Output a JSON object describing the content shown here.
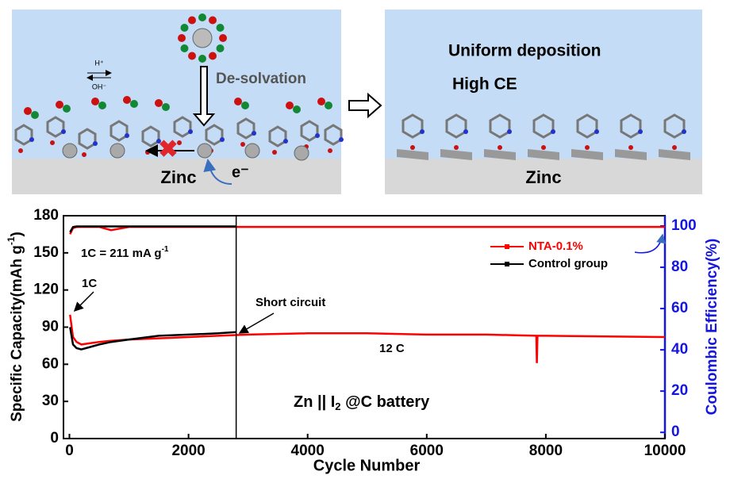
{
  "schematic": {
    "left": {
      "forward": "H⁺",
      "backward": "OH⁻",
      "step": "De-solvation",
      "electrode": "Zinc",
      "electron": "e⁻"
    },
    "right": {
      "line1": "Uniform deposition",
      "line2": "High CE",
      "electrode": "Zinc"
    }
  },
  "chart_data": {
    "type": "line",
    "xlabel": "Cycle Number",
    "ylabel": {
      "text": "Specific Capacity(mAh g",
      "sup": "-1",
      "tail": ")"
    },
    "y2label": "Coulombic Efficiency(%)",
    "xlim": [
      -100,
      10000
    ],
    "xticks": [
      0,
      2000,
      4000,
      6000,
      8000,
      10000
    ],
    "ylim": [
      0,
      180
    ],
    "yticks": [
      0,
      30,
      60,
      90,
      120,
      150,
      180
    ],
    "y2lim": [
      -3,
      105
    ],
    "y2ticks": [
      0,
      20,
      40,
      60,
      80,
      100
    ],
    "legend": "upper right",
    "series": [
      {
        "name": "NTA-0.1%",
        "color": "#ff0000",
        "x": [
          10,
          60,
          120,
          200,
          350,
          500,
          700,
          1000,
          1500,
          2000,
          2500,
          3000,
          4000,
          5000,
          6000,
          7000,
          7840,
          7850,
          7860,
          8000,
          9000,
          10000
        ],
        "values": [
          100,
          82,
          78,
          76,
          77,
          78,
          79,
          80,
          81,
          82,
          83,
          84,
          85,
          85,
          84,
          84,
          83,
          61,
          83,
          83,
          82.5,
          82
        ],
        "efficiency": [
          96,
          99,
          99.5,
          99.6,
          99.6,
          99.6,
          98,
          99.6,
          99.6,
          99.6,
          99.6,
          99.6,
          99.6,
          99.6,
          99.6,
          99.6,
          99.6,
          99.6,
          99.6,
          99.6,
          99.6,
          99.6
        ]
      },
      {
        "name": "Control group",
        "color": "#000000",
        "x": [
          10,
          60,
          120,
          200,
          350,
          500,
          700,
          1000,
          1500,
          2000,
          2500,
          2800
        ],
        "values": [
          90,
          76,
          73,
          72,
          74,
          76,
          78,
          80,
          83,
          84,
          85,
          86
        ],
        "efficiency": [
          97,
          99.5,
          99.8,
          99.8,
          99.8,
          99.8,
          99.8,
          99.8,
          99.8,
          99.8,
          99.8,
          99.8
        ]
      }
    ],
    "annotations": {
      "rate_note": {
        "text": "1C = 211 mA g",
        "sup": "-1"
      },
      "initial_rate": "1C",
      "failure": {
        "text": "Short circuit",
        "x": 2800
      },
      "later_rate": "12 C",
      "battery": {
        "text": "Zn || I",
        "sub": "2",
        "tail": " @C battery"
      }
    }
  }
}
